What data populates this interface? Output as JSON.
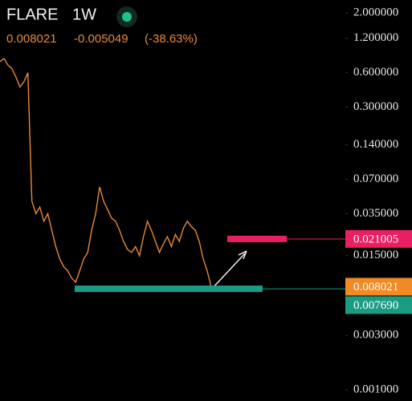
{
  "chart_data": {
    "type": "line",
    "title": "FLARE",
    "interval": "1W",
    "change": -0.005049,
    "change_pct": "(-38.63%)",
    "color": "#e8893a",
    "log_scale": true,
    "values": [
      0.75,
      0.8,
      0.7,
      0.65,
      0.55,
      0.45,
      0.5,
      0.6,
      0.045,
      0.035,
      0.04,
      0.03,
      0.035,
      0.025,
      0.018,
      0.014,
      0.012,
      0.011,
      0.0095,
      0.0088,
      0.011,
      0.014,
      0.016,
      0.025,
      0.035,
      0.06,
      0.045,
      0.038,
      0.032,
      0.03,
      0.025,
      0.02,
      0.017,
      0.016,
      0.018,
      0.015,
      0.022,
      0.03,
      0.025,
      0.02,
      0.016,
      0.019,
      0.022,
      0.018,
      0.023,
      0.02,
      0.026,
      0.03,
      0.027,
      0.025,
      0.02,
      0.014,
      0.011,
      0.008021
    ],
    "ylim": [
      0.0008,
      2.6
    ],
    "yticks": [
      {
        "value": 2,
        "label": "2.000000"
      },
      {
        "value": 1.2,
        "label": "1.200000"
      },
      {
        "value": 0.6,
        "label": "0.600000"
      },
      {
        "value": 0.3,
        "label": "0.300000"
      },
      {
        "value": 0.14,
        "label": "0.140000"
      },
      {
        "value": 0.07,
        "label": "0.070000"
      },
      {
        "value": 0.035,
        "label": "0.035000"
      },
      {
        "value": 0.015,
        "label": "0.015000"
      },
      {
        "value": 0.003,
        "label": "0.003000"
      },
      {
        "value": 0.001,
        "label": "0.001000"
      }
    ],
    "price_lines": [
      {
        "value": 0.021005,
        "label": "0.021005",
        "color": "#e91e63"
      },
      {
        "value": 0.00769,
        "label": "0.007690",
        "color": "#1a9c84"
      }
    ],
    "last_color": "#f08a24"
  }
}
